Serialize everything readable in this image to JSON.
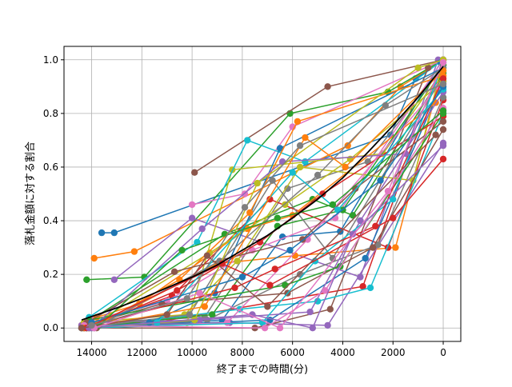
{
  "chart_data": {
    "type": "line",
    "title": "",
    "xlabel": "終了までの時間(分)",
    "ylabel": "落札金額に対する割合",
    "xlim": [
      15100,
      -700
    ],
    "ylim": [
      -0.05,
      1.05
    ],
    "x_inverted": true,
    "grid": true,
    "legend": "none",
    "xticks": [
      14000,
      12000,
      10000,
      8000,
      6000,
      4000,
      2000,
      0
    ],
    "xtick_labels": [
      "14000",
      "12000",
      "10000",
      "8000",
      "6000",
      "4000",
      "2000",
      "0"
    ],
    "yticks": [
      0.0,
      0.2,
      0.4,
      0.6,
      0.8,
      1.0
    ],
    "ytick_labels": [
      "0.0",
      "0.2",
      "0.4",
      "0.6",
      "0.8",
      "1.0"
    ],
    "palette": [
      "#1f77b4",
      "#ff7f0e",
      "#2ca02c",
      "#d62728",
      "#9467bd",
      "#8c564b",
      "#e377c2",
      "#7f7f7f",
      "#bcbd22",
      "#17becf"
    ],
    "trend_color": "#000000",
    "trend": {
      "x": [
        14400,
        13000,
        12000,
        11000,
        10000,
        9000,
        8000,
        7000,
        6000,
        5000,
        4000,
        3000,
        2000,
        1000,
        0
      ],
      "y": [
        0.03,
        0.075,
        0.11,
        0.15,
        0.19,
        0.235,
        0.29,
        0.345,
        0.41,
        0.48,
        0.56,
        0.655,
        0.755,
        0.86,
        0.975
      ]
    },
    "series": [
      {
        "x": [
          13600,
          13100,
          2100,
          1100,
          0
        ],
        "y": [
          0.355,
          0.355,
          0.72,
          0.93,
          1.0
        ]
      },
      {
        "x": [
          13900,
          12300,
          3800,
          1700,
          0
        ],
        "y": [
          0.26,
          0.285,
          0.68,
          0.9,
          1.0
        ]
      },
      {
        "x": [
          14200,
          11900,
          6100,
          2200,
          0
        ],
        "y": [
          0.18,
          0.19,
          0.8,
          0.88,
          1.0
        ]
      },
      {
        "x": [
          14400,
          11500,
          3200,
          0
        ],
        "y": [
          0.01,
          0.02,
          0.155,
          1.0
        ]
      },
      {
        "x": [
          13100,
          10000,
          3300,
          200
        ],
        "y": [
          0.18,
          0.41,
          0.19,
          1.0
        ]
      },
      {
        "x": [
          9900,
          4600,
          0
        ],
        "y": [
          0.58,
          0.9,
          1.0
        ]
      },
      {
        "x": [
          10000,
          7900,
          6000,
          0
        ],
        "y": [
          0.46,
          0.5,
          0.75,
          1.0
        ]
      },
      {
        "x": [
          14000,
          9500,
          6200,
          3000,
          0
        ],
        "y": [
          0.02,
          0.04,
          0.52,
          0.62,
          0.98
        ]
      },
      {
        "x": [
          14300,
          10200,
          8400,
          2400,
          0
        ],
        "y": [
          0.0,
          0.02,
          0.59,
          0.65,
          0.96
        ]
      },
      {
        "x": [
          14100,
          9800,
          7800,
          5500,
          0
        ],
        "y": [
          0.04,
          0.32,
          0.7,
          0.62,
          1.0
        ]
      },
      {
        "x": [
          14000,
          8800,
          6400,
          4100,
          100
        ],
        "y": [
          0.0,
          0.03,
          0.34,
          0.36,
          0.99
        ]
      },
      {
        "x": [
          13700,
          9000,
          5900,
          1900,
          0
        ],
        "y": [
          0.01,
          0.24,
          0.27,
          0.3,
          0.98
        ]
      },
      {
        "x": [
          14200,
          8700,
          5200,
          3600,
          0
        ],
        "y": [
          0.02,
          0.35,
          0.48,
          0.42,
          0.95
        ]
      },
      {
        "x": [
          14300,
          10800,
          6900,
          2200,
          0
        ],
        "y": [
          0.0,
          0.12,
          0.48,
          0.3,
          0.85
        ]
      },
      {
        "x": [
          14400,
          8500,
          4600,
          0
        ],
        "y": [
          0.01,
          0.02,
          0.01,
          0.69
        ]
      },
      {
        "x": [
          13800,
          7500,
          4500,
          600
        ],
        "y": [
          0.0,
          0.0,
          0.07,
          0.97
        ]
      },
      {
        "x": [
          14000,
          11000,
          7600,
          4300,
          0
        ],
        "y": [
          0.03,
          0.1,
          0.29,
          0.41,
          1.0
        ]
      },
      {
        "x": [
          14200,
          9400,
          5700,
          2600,
          0
        ],
        "y": [
          0.0,
          0.03,
          0.2,
          0.31,
          0.86
        ]
      },
      {
        "x": [
          14300,
          10300,
          8200,
          5700,
          1200,
          0
        ],
        "y": [
          0.02,
          0.05,
          0.25,
          0.6,
          0.55,
          1.0
        ]
      },
      {
        "x": [
          14100,
          8100,
          5000,
          2900,
          0
        ],
        "y": [
          0.0,
          0.07,
          0.1,
          0.15,
          0.8
        ]
      },
      {
        "x": [
          14200,
          6900,
          3100,
          0
        ],
        "y": [
          0.0,
          0.03,
          0.26,
          0.92
        ]
      },
      {
        "x": [
          13800,
          12100,
          7800,
          6000,
          300
        ],
        "y": [
          0.04,
          0.09,
          0.37,
          0.42,
          0.84
        ]
      },
      {
        "x": [
          14400,
          9200,
          6600,
          4000,
          0
        ],
        "y": [
          0.0,
          0.05,
          0.38,
          0.44,
          0.98
        ]
      },
      {
        "x": [
          14100,
          10600,
          7300,
          4800,
          0
        ],
        "y": [
          0.0,
          0.14,
          0.32,
          0.5,
          0.79
        ]
      },
      {
        "x": [
          14000,
          9700,
          5300,
          3300,
          0
        ],
        "y": [
          0.02,
          0.03,
          0.06,
          0.4,
          0.88
        ]
      },
      {
        "x": [
          14300,
          11200,
          6200,
          2800,
          0
        ],
        "y": [
          0.01,
          0.09,
          0.13,
          0.3,
          0.74
        ]
      },
      {
        "x": [
          13900,
          8600,
          5400,
          200
        ],
        "y": [
          0.0,
          0.02,
          0.33,
          0.9
        ]
      },
      {
        "x": [
          14400,
          10100,
          6800,
          4400,
          0
        ],
        "y": [
          0.0,
          0.05,
          0.55,
          0.26,
          0.94
        ]
      },
      {
        "x": [
          14000,
          9300,
          6300,
          3700,
          0
        ],
        "y": [
          0.01,
          0.28,
          0.46,
          0.63,
          0.92
        ]
      },
      {
        "x": [
          14200,
          7200,
          5100,
          2000,
          0
        ],
        "y": [
          0.0,
          0.02,
          0.25,
          0.48,
          0.99
        ]
      },
      {
        "x": [
          14300,
          11700,
          9100,
          6500,
          0
        ],
        "y": [
          0.0,
          0.02,
          0.13,
          0.67,
          0.97
        ]
      },
      {
        "x": [
          13800,
          10500,
          7700,
          5800,
          0
        ],
        "y": [
          0.01,
          0.18,
          0.43,
          0.77,
          0.94
        ]
      },
      {
        "x": [
          14100,
          6300,
          4100,
          0
        ],
        "y": [
          0.03,
          0.16,
          0.23,
          0.8
        ]
      },
      {
        "x": [
          14400,
          8300,
          6700,
          2700,
          0
        ],
        "y": [
          0.0,
          0.15,
          0.22,
          0.38,
          0.93
        ]
      },
      {
        "x": [
          14000,
          9600,
          6400,
          1500,
          0
        ],
        "y": [
          0.0,
          0.37,
          0.62,
          0.65,
          1.0
        ]
      },
      {
        "x": [
          14200,
          10700,
          5600,
          3500,
          0
        ],
        "y": [
          0.02,
          0.21,
          0.33,
          0.52,
          0.77
        ]
      },
      {
        "x": [
          14300,
          7100,
          4700,
          0
        ],
        "y": [
          0.01,
          0.0,
          0.14,
          0.82
        ]
      },
      {
        "x": [
          13900,
          8900,
          5000,
          2300,
          0
        ],
        "y": [
          0.0,
          0.25,
          0.57,
          0.83,
          0.97
        ]
      },
      {
        "x": [
          14100,
          9900,
          7400,
          1000,
          0
        ],
        "y": [
          0.0,
          0.03,
          0.54,
          0.97,
          1.0
        ]
      },
      {
        "x": [
          14400,
          11400,
          6000,
          4200,
          0
        ],
        "y": [
          0.0,
          0.02,
          0.58,
          0.44,
          0.89
        ]
      },
      {
        "x": [
          14000,
          8000,
          6100,
          2500,
          0
        ],
        "y": [
          0.02,
          0.19,
          0.29,
          0.55,
          0.9
        ]
      },
      {
        "x": [
          14300,
          9500,
          5500,
          3900,
          0
        ],
        "y": [
          0.0,
          0.08,
          0.71,
          0.6,
          0.96
        ]
      },
      {
        "x": [
          13700,
          10400,
          6600,
          4400,
          0
        ],
        "y": [
          0.01,
          0.29,
          0.41,
          0.46,
          0.81
        ]
      },
      {
        "x": [
          14200,
          8800,
          6900,
          2000,
          0
        ],
        "y": [
          0.0,
          0.24,
          0.16,
          0.41,
          0.63
        ]
      },
      {
        "x": [
          14100,
          7600,
          5200,
          3600,
          0
        ],
        "y": [
          0.0,
          0.05,
          0.0,
          0.35,
          0.68
        ]
      },
      {
        "x": [
          14400,
          11000,
          9400,
          7000,
          300
        ],
        "y": [
          0.0,
          0.05,
          0.27,
          0.08,
          0.72
        ]
      },
      {
        "x": [
          13900,
          9700,
          6500,
          2200,
          0
        ],
        "y": [
          0.0,
          0.13,
          0.0,
          0.51,
          0.99
        ]
      },
      {
        "x": [
          14000,
          10200,
          7900,
          5700,
          0
        ],
        "y": [
          0.01,
          0.11,
          0.45,
          0.68,
          0.91
        ]
      }
    ]
  }
}
